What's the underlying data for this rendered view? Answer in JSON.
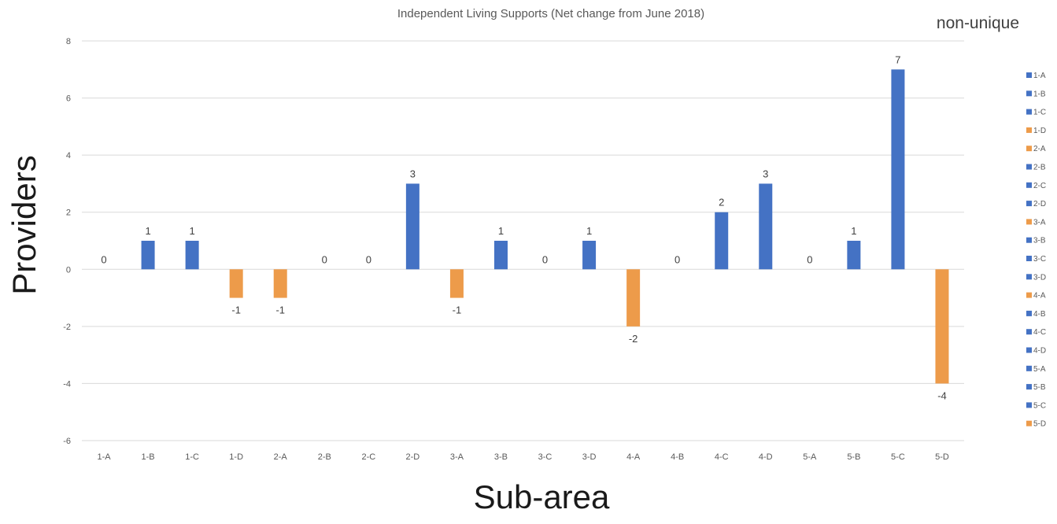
{
  "chart_data": {
    "type": "bar",
    "title": "Independent Living Supports (Net change from June 2018)",
    "annotation": "non-unique",
    "xlabel": "Sub-area",
    "ylabel": "Providers",
    "ylim": [
      -6,
      8
    ],
    "yticks": [
      -6,
      -4,
      -2,
      0,
      2,
      4,
      6,
      8
    ],
    "grid": true,
    "legend_position": "right",
    "colors": {
      "positive": "#4472c4",
      "negative": "#ed9b4a",
      "grid": "#d9d9d9"
    },
    "categories": [
      "1-A",
      "1-B",
      "1-C",
      "1-D",
      "2-A",
      "2-B",
      "2-C",
      "2-D",
      "3-A",
      "3-B",
      "3-C",
      "3-D",
      "4-A",
      "4-B",
      "4-C",
      "4-D",
      "5-A",
      "5-B",
      "5-C",
      "5-D"
    ],
    "values": [
      0,
      1,
      1,
      -1,
      -1,
      0,
      0,
      3,
      -1,
      1,
      0,
      1,
      -2,
      0,
      2,
      3,
      0,
      1,
      7,
      -4
    ],
    "legend": [
      "1-A",
      "1-B",
      "1-C",
      "1-D",
      "2-A",
      "2-B",
      "2-C",
      "2-D",
      "3-A",
      "3-B",
      "3-C",
      "3-D",
      "4-A",
      "4-B",
      "4-C",
      "4-D",
      "5-A",
      "5-B",
      "5-C",
      "5-D"
    ]
  }
}
